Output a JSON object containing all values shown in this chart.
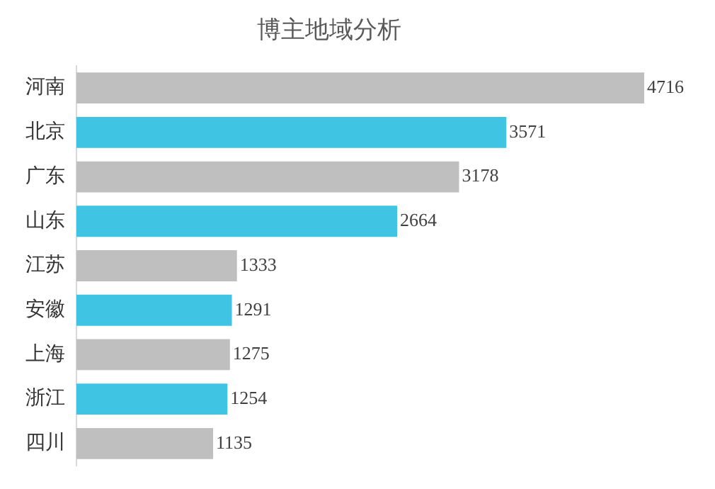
{
  "chart_data": {
    "type": "bar",
    "orientation": "horizontal",
    "title": "博主地域分析",
    "categories": [
      "河南",
      "北京",
      "广东",
      "山东",
      "江苏",
      "安徽",
      "上海",
      "浙江",
      "四川"
    ],
    "values": [
      4716,
      3571,
      3178,
      2664,
      1333,
      1291,
      1275,
      1254,
      1135
    ],
    "colors": [
      "#bfbfbf",
      "#3fc4e3",
      "#bfbfbf",
      "#3fc4e3",
      "#bfbfbf",
      "#3fc4e3",
      "#bfbfbf",
      "#3fc4e3",
      "#bfbfbf"
    ],
    "data_labels": true,
    "legend": false
  }
}
